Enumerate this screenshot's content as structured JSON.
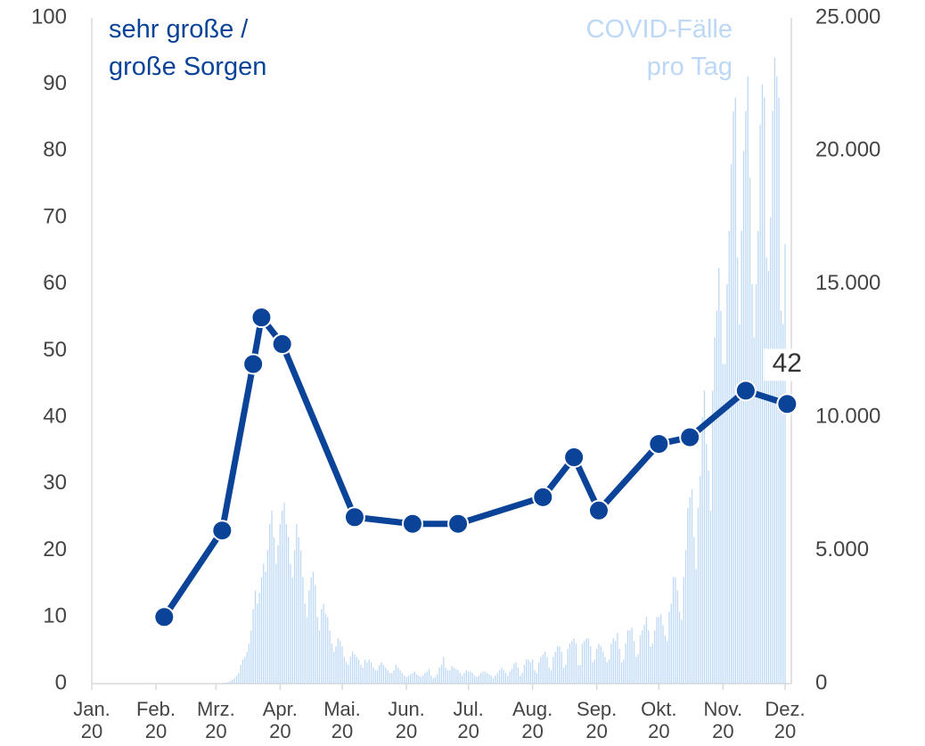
{
  "chart_data": {
    "type": "line",
    "xlim": [
      0,
      340
    ],
    "xticks": [
      {
        "value": 0,
        "label": "Jan.\n20"
      },
      {
        "value": 31,
        "label": "Feb.\n20"
      },
      {
        "value": 60,
        "label": "Mrz.\n20"
      },
      {
        "value": 91,
        "label": "Apr.\n20"
      },
      {
        "value": 121,
        "label": "Mai.\n20"
      },
      {
        "value": 152,
        "label": "Jun.\n20"
      },
      {
        "value": 182,
        "label": "Jul.\n20"
      },
      {
        "value": 213,
        "label": "Aug.\n20"
      },
      {
        "value": 244,
        "label": "Sep.\n20"
      },
      {
        "value": 274,
        "label": "Okt.\n20"
      },
      {
        "value": 305,
        "label": "Nov.\n20"
      },
      {
        "value": 335,
        "label": "Dez.\n20"
      }
    ],
    "ylim": [
      0,
      100
    ],
    "yticks": [
      0,
      10,
      20,
      30,
      40,
      50,
      60,
      70,
      80,
      90,
      100
    ],
    "y2lim": [
      0,
      25000
    ],
    "y2ticks": [
      0,
      {
        "value": 5000,
        "label": "5.000"
      },
      {
        "value": 10000,
        "label": "10.000"
      },
      {
        "value": 15000,
        "label": "15.000"
      },
      {
        "value": 20000,
        "label": "20.000"
      },
      {
        "value": 25000,
        "label": "25.000"
      }
    ],
    "series": [
      {
        "name": "COVID-Fälle\npro Tag",
        "type": "bar",
        "axis": "y2",
        "color": "#bcd8f5",
        "x": [
          60,
          61,
          62,
          63,
          64,
          65,
          66,
          67,
          68,
          69,
          70,
          71,
          72,
          73,
          74,
          75,
          76,
          77,
          78,
          79,
          80,
          81,
          82,
          83,
          84,
          85,
          86,
          87,
          88,
          89,
          90,
          91,
          92,
          93,
          94,
          95,
          96,
          97,
          98,
          99,
          100,
          101,
          102,
          103,
          104,
          105,
          106,
          107,
          108,
          109,
          110,
          111,
          112,
          113,
          114,
          115,
          116,
          117,
          118,
          119,
          120,
          121,
          122,
          123,
          124,
          125,
          126,
          127,
          128,
          129,
          130,
          131,
          132,
          133,
          134,
          135,
          136,
          137,
          138,
          139,
          140,
          141,
          142,
          143,
          144,
          145,
          146,
          147,
          148,
          149,
          150,
          151,
          152,
          153,
          154,
          155,
          156,
          157,
          158,
          159,
          160,
          161,
          162,
          163,
          164,
          165,
          166,
          167,
          168,
          169,
          170,
          171,
          172,
          173,
          174,
          175,
          176,
          177,
          178,
          179,
          180,
          181,
          182,
          183,
          184,
          185,
          186,
          187,
          188,
          189,
          190,
          191,
          192,
          193,
          194,
          195,
          196,
          197,
          198,
          199,
          200,
          201,
          202,
          203,
          204,
          205,
          206,
          207,
          208,
          209,
          210,
          211,
          212,
          213,
          214,
          215,
          216,
          217,
          218,
          219,
          220,
          221,
          222,
          223,
          224,
          225,
          226,
          227,
          228,
          229,
          230,
          231,
          232,
          233,
          234,
          235,
          236,
          237,
          238,
          239,
          240,
          241,
          242,
          243,
          244,
          245,
          246,
          247,
          248,
          249,
          250,
          251,
          252,
          253,
          254,
          255,
          256,
          257,
          258,
          259,
          260,
          261,
          262,
          263,
          264,
          265,
          266,
          267,
          268,
          269,
          270,
          271,
          272,
          273,
          274,
          275,
          276,
          277,
          278,
          279,
          280,
          281,
          282,
          283,
          284,
          285,
          286,
          287,
          288,
          289,
          290,
          291,
          292,
          293,
          294,
          295,
          296,
          297,
          298,
          299,
          300,
          301,
          302,
          303,
          304,
          305,
          306,
          307,
          308,
          309,
          310,
          311,
          312,
          313,
          314,
          315,
          316,
          317,
          318,
          319,
          320,
          321,
          322,
          323,
          324,
          325,
          326,
          327,
          328,
          329,
          330,
          331,
          332,
          333,
          334,
          335
        ],
        "values": [
          0,
          0,
          10,
          20,
          30,
          50,
          60,
          100,
          150,
          200,
          300,
          400,
          700,
          900,
          1000,
          1200,
          1500,
          2000,
          2800,
          3500,
          3000,
          3400,
          4000,
          4500,
          4200,
          5000,
          6000,
          6500,
          5500,
          4500,
          5200,
          6000,
          6500,
          6800,
          6000,
          5500,
          4500,
          4000,
          5000,
          6000,
          5500,
          5000,
          4000,
          3000,
          2500,
          3500,
          4000,
          4200,
          3700,
          2500,
          2000,
          2800,
          3000,
          2600,
          2500,
          2000,
          1500,
          1200,
          1400,
          1700,
          1600,
          1400,
          1000,
          800,
          700,
          1000,
          1200,
          1100,
          1000,
          900,
          700,
          600,
          900,
          800,
          900,
          800,
          600,
          500,
          500,
          700,
          800,
          700,
          600,
          500,
          400,
          400,
          500,
          700,
          600,
          500,
          400,
          300,
          250,
          300,
          350,
          400,
          450,
          350,
          300,
          250,
          300,
          400,
          450,
          550,
          300,
          200,
          250,
          350,
          600,
          700,
          1000,
          600,
          500,
          500,
          650,
          600,
          550,
          500,
          400,
          300,
          400,
          500,
          450,
          450,
          400,
          300,
          250,
          300,
          400,
          450,
          450,
          400,
          350,
          300,
          200,
          300,
          400,
          500,
          600,
          500,
          400,
          300,
          450,
          550,
          750,
          800,
          600,
          300,
          400,
          700,
          900,
          900,
          800,
          900,
          500,
          400,
          800,
          1000,
          1100,
          1200,
          1000,
          600,
          500,
          1000,
          1200,
          1400,
          1400,
          1200,
          600,
          700,
          1300,
          1500,
          1600,
          1700,
          1500,
          700,
          700,
          1500,
          1600,
          1700,
          1700,
          1400,
          800,
          900,
          1300,
          1500,
          1400,
          1200,
          1000,
          800,
          900,
          1500,
          1700,
          1600,
          1900,
          1300,
          800,
          900,
          1500,
          2000,
          2000,
          2100,
          1600,
          1000,
          1100,
          1800,
          2000,
          2200,
          2500,
          2000,
          1400,
          1500,
          2000,
          2500,
          2500,
          2600,
          2200,
          1800,
          1600,
          2700,
          3000,
          4000,
          4000,
          3500,
          2700,
          2400,
          4000,
          5000,
          6600,
          7000,
          7300,
          5500,
          4300,
          6600,
          7800,
          10000,
          11000,
          9000,
          8000,
          6500,
          11000,
          13000,
          14000,
          15600,
          14000,
          12000,
          12000,
          15000,
          17000,
          19500,
          21500,
          22000,
          16000,
          13500,
          17000,
          20000,
          21500,
          22800,
          19000,
          15000,
          13000,
          15000,
          17000,
          21000,
          22500,
          22000,
          16000,
          15500,
          17500,
          21500,
          23500,
          22800,
          22000,
          14000,
          13500,
          16500
        ]
      },
      {
        "name": "sehr große /\ngroße Sorgen",
        "type": "line",
        "color": "#0a4397",
        "x": [
          35,
          63,
          78,
          82,
          92,
          127,
          155,
          177,
          218,
          233,
          245,
          274,
          289,
          316,
          336
        ],
        "values": [
          10,
          23,
          48,
          55,
          51,
          25,
          24,
          24,
          28,
          34,
          26,
          36,
          37,
          44,
          42
        ]
      }
    ]
  }
}
